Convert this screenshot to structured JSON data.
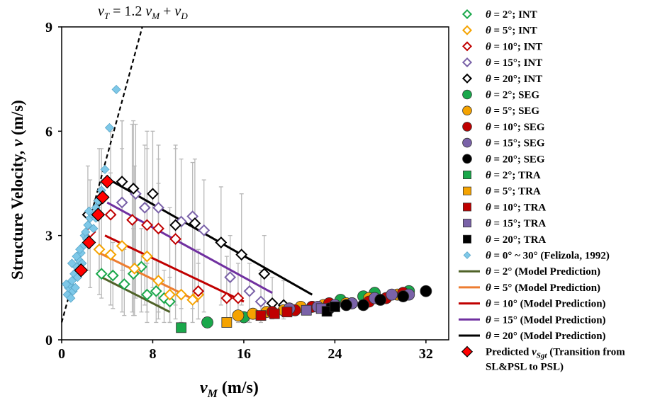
{
  "chart_data": {
    "type": "scatter",
    "xlabel_main": "v",
    "xlabel_sub": "M",
    "xlabel_unit": " (m/s)",
    "ylabel_main": "Structure Velocity, ",
    "ylabel_var": "v",
    "ylabel_unit": " (m/s)",
    "annotation": {
      "a": "v",
      "a_sub": "T",
      "b": " = 1.2 ",
      "c": "v",
      "c_sub": "M",
      "d": " + ",
      "e": "v",
      "e_sub": "D"
    },
    "xlim": [
      0,
      34
    ],
    "ylim": [
      0,
      9
    ],
    "xticks": [
      "0",
      "8",
      "16",
      "24",
      "32"
    ],
    "xtick_values": [
      0,
      8,
      16,
      24,
      32
    ],
    "yticks": [
      "0",
      "3",
      "6",
      "9"
    ],
    "ytick_values": [
      0,
      3,
      6,
      9
    ],
    "drift_line": {
      "slope": 1.2,
      "intercept": 0.5
    },
    "colors": {
      "green": "#1aa84b",
      "orange": "#f5a300",
      "red": "#c00000",
      "purple": "#7a62a8",
      "black": "#000000",
      "lightblue": "#7ec8e8",
      "line_green": "#4f6228",
      "line_orange": "#ed7d31",
      "line_red": "#c00000",
      "line_purple": "#7030a0",
      "line_black": "#000000",
      "predicted": "#ff0000"
    },
    "legend": [
      {
        "th": "θ",
        "rest": " = 2°; INT"
      },
      {
        "th": "θ",
        "rest": " = 5°; INT"
      },
      {
        "th": "θ",
        "rest": " = 10°; INT"
      },
      {
        "th": "θ",
        "rest": " = 15°; INT"
      },
      {
        "th": "θ",
        "rest": " = 20°; INT"
      },
      {
        "th": "θ",
        "rest": " = 2°; SEG"
      },
      {
        "th": "θ",
        "rest": " = 5°; SEG"
      },
      {
        "th": "θ",
        "rest": " = 10°; SEG"
      },
      {
        "th": "θ",
        "rest": " = 15°; SEG"
      },
      {
        "th": "θ",
        "rest": " = 20°; SEG"
      },
      {
        "th": "θ",
        "rest": " = 2°; TRA"
      },
      {
        "th": "θ",
        "rest": " = 5°; TRA"
      },
      {
        "th": "θ",
        "rest": " = 10°; TRA"
      },
      {
        "th": "θ",
        "rest": " = 15°; TRA"
      },
      {
        "th": "θ",
        "rest": " = 20°; TRA"
      },
      {
        "th": "θ",
        "rest": " = 0° ~ 30°  (Felizola, 1992)"
      },
      {
        "th": "θ",
        "rest": " = 2° (Model Prediction)"
      },
      {
        "th": "θ",
        "rest": " = 5° (Model Prediction)"
      },
      {
        "th": "θ",
        "rest": " = 10° (Model Prediction)"
      },
      {
        "th": "θ",
        "rest": " = 15° (Model Prediction)"
      },
      {
        "th": "θ",
        "rest": " = 20° (Model Prediction)"
      },
      {
        "th": "",
        "rest": "Predicted ",
        "var": "v",
        "var_sub": "Sgt",
        "after": " (Transition from",
        "line2": "SL&PSL to PSL)"
      }
    ],
    "legend_markers": [
      "int-green",
      "int-orange",
      "int-red",
      "int-purple",
      "int-black",
      "seg-green",
      "seg-orange",
      "seg-red",
      "seg-purple",
      "seg-black",
      "tra-green",
      "tra-orange",
      "tra-red",
      "tra-purple",
      "tra-black",
      "felizola",
      "line-green",
      "line-orange",
      "line-red",
      "line-purple",
      "line-black",
      "predicted"
    ],
    "series": [
      {
        "kind": "int",
        "color": "green",
        "points": [
          [
            3.5,
            1.9
          ],
          [
            4.5,
            1.85
          ],
          [
            5.5,
            1.6
          ],
          [
            6.3,
            1.9
          ],
          [
            7,
            2.1
          ],
          [
            7.5,
            1.3
          ],
          [
            8.3,
            1.4
          ],
          [
            9,
            1.2
          ],
          [
            9.5,
            1.1
          ]
        ],
        "errors": [
          [
            3.5,
            1.2,
            2.6
          ],
          [
            4.5,
            0.9,
            2.8
          ],
          [
            5.5,
            0.7,
            2.6
          ],
          [
            6.3,
            0.7,
            3.2
          ],
          [
            7,
            0.8,
            3.2
          ],
          [
            7.5,
            0.5,
            2.2
          ],
          [
            8.3,
            0.5,
            2.3
          ],
          [
            9,
            0.5,
            2.0
          ],
          [
            9.5,
            0.5,
            1.8
          ]
        ]
      },
      {
        "kind": "int",
        "color": "orange",
        "points": [
          [
            3.3,
            2.6
          ],
          [
            4.3,
            2.45
          ],
          [
            5.3,
            2.7
          ],
          [
            6.4,
            2.05
          ],
          [
            7.5,
            2.4
          ],
          [
            8.5,
            1.7
          ],
          [
            9.5,
            1.3
          ],
          [
            10.5,
            1.3
          ],
          [
            11.5,
            1.15
          ],
          [
            12,
            1.3
          ]
        ],
        "errors": [
          [
            3.3,
            1.3,
            4.0
          ],
          [
            4.3,
            1.0,
            4.8
          ],
          [
            5.3,
            0.8,
            5.5
          ],
          [
            6.4,
            0.7,
            5.0
          ],
          [
            7.5,
            0.8,
            5.5
          ],
          [
            8.5,
            0.6,
            4.5
          ],
          [
            9.5,
            0.5,
            3.8
          ],
          [
            10.5,
            0.5,
            3.5
          ],
          [
            11.5,
            0.5,
            2.6
          ],
          [
            12,
            0.6,
            2.2
          ]
        ]
      },
      {
        "kind": "int",
        "color": "red",
        "points": [
          [
            2.5,
            3.1
          ],
          [
            4.3,
            3.6
          ],
          [
            6.2,
            3.45
          ],
          [
            7.5,
            3.3
          ],
          [
            8.5,
            3.2
          ],
          [
            10,
            2.9
          ],
          [
            12,
            1.4
          ],
          [
            14.5,
            1.2
          ],
          [
            15.5,
            1.2
          ]
        ],
        "errors": [
          [
            2.5,
            1.5,
            4.6
          ],
          [
            4.3,
            1.0,
            6.0
          ],
          [
            6.2,
            0.8,
            6.2
          ],
          [
            7.5,
            0.8,
            6.0
          ],
          [
            8.5,
            0.8,
            5.2
          ],
          [
            10,
            0.6,
            5.5
          ],
          [
            12,
            0.6,
            2.6
          ],
          [
            14.5,
            0.5,
            2.4
          ],
          [
            15.5,
            0.5,
            2.2
          ]
        ]
      },
      {
        "kind": "int",
        "color": "purple",
        "points": [
          [
            3.5,
            4.1
          ],
          [
            5.3,
            3.95
          ],
          [
            6.5,
            4.2
          ],
          [
            7.3,
            3.8
          ],
          [
            8.5,
            3.8
          ],
          [
            10.5,
            3.4
          ],
          [
            11.5,
            3.55
          ],
          [
            12.5,
            3.15
          ],
          [
            14.8,
            1.8
          ],
          [
            16.5,
            1.4
          ],
          [
            17.5,
            1.1
          ]
        ],
        "errors": [
          [
            3.5,
            2.0,
            5.5
          ],
          [
            5.3,
            1.5,
            6.3
          ],
          [
            6.5,
            1.2,
            6.2
          ],
          [
            7.3,
            1.0,
            5.6
          ],
          [
            8.5,
            1.0,
            5.6
          ],
          [
            10.5,
            0.9,
            5.2
          ],
          [
            11.5,
            0.9,
            5.1
          ],
          [
            12.5,
            0.8,
            4.6
          ],
          [
            14.8,
            0.6,
            3.0
          ],
          [
            16.5,
            0.5,
            2.2
          ],
          [
            17.5,
            0.5,
            2.0
          ]
        ]
      },
      {
        "kind": "int",
        "color": "black",
        "points": [
          [
            2.3,
            3.6
          ],
          [
            3.3,
            4.0
          ],
          [
            5.3,
            4.55
          ],
          [
            6.3,
            4.35
          ],
          [
            8,
            4.2
          ],
          [
            10,
            3.3
          ],
          [
            11.7,
            3.35
          ],
          [
            14,
            2.8
          ],
          [
            15.8,
            2.45
          ],
          [
            17.8,
            1.9
          ],
          [
            18.5,
            1.05
          ],
          [
            19.5,
            1.0
          ]
        ],
        "errors": [
          [
            2.3,
            2.0,
            5.0
          ],
          [
            3.3,
            2.0,
            5.5
          ],
          [
            5.3,
            2.0,
            6.3
          ],
          [
            6.3,
            1.8,
            6.3
          ],
          [
            8,
            1.5,
            6.0
          ],
          [
            10,
            1.0,
            5.6
          ],
          [
            11.7,
            1.2,
            5.2
          ],
          [
            14,
            1.0,
            4.4
          ],
          [
            15.8,
            1.0,
            4.2
          ],
          [
            17.8,
            0.8,
            3.0
          ],
          [
            18.5,
            0.6,
            1.8
          ],
          [
            19.5,
            0.6,
            1.7
          ]
        ]
      },
      {
        "kind": "seg",
        "color": "green",
        "points": [
          [
            12.8,
            0.5
          ],
          [
            16,
            0.65
          ],
          [
            20,
            0.9
          ],
          [
            22,
            0.95
          ],
          [
            24.5,
            1.15
          ],
          [
            26.5,
            1.25
          ],
          [
            27.5,
            1.35
          ],
          [
            30.5,
            1.4
          ]
        ]
      },
      {
        "kind": "seg",
        "color": "orange",
        "points": [
          [
            15.5,
            0.7
          ],
          [
            16.8,
            0.75
          ],
          [
            18,
            0.8
          ],
          [
            19.5,
            0.85
          ],
          [
            21,
            0.95
          ],
          [
            23,
            1.0
          ],
          [
            25,
            1.05
          ],
          [
            27,
            1.2
          ],
          [
            29.5,
            1.3
          ]
        ]
      },
      {
        "kind": "seg",
        "color": "red",
        "points": [
          [
            18.5,
            0.8
          ],
          [
            20.5,
            0.85
          ],
          [
            22,
            0.95
          ],
          [
            23.5,
            1.05
          ],
          [
            25.5,
            1.05
          ],
          [
            27,
            1.1
          ],
          [
            28.5,
            1.2
          ],
          [
            30,
            1.35
          ]
        ]
      },
      {
        "kind": "seg",
        "color": "purple",
        "points": [
          [
            20,
            0.9
          ],
          [
            22.5,
            0.95
          ],
          [
            24,
            1.0
          ],
          [
            25.5,
            1.05
          ],
          [
            27.5,
            1.2
          ],
          [
            29,
            1.3
          ],
          [
            30.5,
            1.3
          ]
        ]
      },
      {
        "kind": "seg",
        "color": "black",
        "points": [
          [
            23.5,
            0.9
          ],
          [
            25,
            1.0
          ],
          [
            26.5,
            1.0
          ],
          [
            28,
            1.15
          ],
          [
            30,
            1.25
          ],
          [
            32,
            1.4
          ]
        ]
      },
      {
        "kind": "tra",
        "color": "green",
        "points": [
          [
            10.5,
            0.35
          ]
        ]
      },
      {
        "kind": "tra",
        "color": "orange",
        "points": [
          [
            14.5,
            0.5
          ]
        ]
      },
      {
        "kind": "tra",
        "color": "red",
        "points": [
          [
            17.5,
            0.7
          ],
          [
            18.7,
            0.75
          ],
          [
            19.8,
            0.8
          ]
        ]
      },
      {
        "kind": "tra",
        "color": "purple",
        "points": [
          [
            21.5,
            0.85
          ],
          [
            22.8,
            0.9
          ]
        ]
      },
      {
        "kind": "tra",
        "color": "black",
        "points": [
          [
            23.3,
            0.82
          ],
          [
            24,
            0.95
          ]
        ]
      },
      {
        "kind": "felizola",
        "color": "lightblue",
        "points": [
          [
            0.5,
            1.3
          ],
          [
            0.6,
            1.5
          ],
          [
            0.7,
            1.6
          ],
          [
            0.8,
            1.2
          ],
          [
            0.9,
            1.7
          ],
          [
            1.0,
            1.4
          ],
          [
            1.1,
            1.9
          ],
          [
            1.2,
            1.5
          ],
          [
            1.3,
            2.1
          ],
          [
            1.4,
            1.8
          ],
          [
            1.5,
            2.3
          ],
          [
            1.6,
            2.0
          ],
          [
            1.7,
            2.5
          ],
          [
            1.8,
            2.2
          ],
          [
            1.9,
            2.7
          ],
          [
            2.0,
            3.0
          ],
          [
            2.1,
            3.1
          ],
          [
            2.2,
            2.9
          ],
          [
            2.3,
            3.3
          ],
          [
            2.5,
            3.5
          ],
          [
            2.7,
            3.6
          ],
          [
            2.8,
            3.2
          ],
          [
            3.0,
            3.8
          ],
          [
            3.2,
            4.0
          ],
          [
            3.5,
            4.3
          ],
          [
            3.8,
            4.9
          ],
          [
            4.2,
            6.1
          ],
          [
            4.8,
            7.2
          ],
          [
            0.4,
            1.6
          ],
          [
            0.9,
            2.2
          ],
          [
            1.3,
            2.4
          ],
          [
            1.6,
            2.6
          ],
          [
            2.4,
            3.7
          ],
          [
            3.0,
            3.5
          ]
        ]
      }
    ],
    "model_lines": [
      {
        "color": "line_green",
        "from": [
          3.5,
          1.8
        ],
        "to": [
          9.5,
          0.8
        ]
      },
      {
        "color": "line_orange",
        "from": [
          3.3,
          2.5
        ],
        "to": [
          12,
          1.1
        ]
      },
      {
        "color": "line_red",
        "from": [
          3.8,
          3.0
        ],
        "to": [
          16,
          1.1
        ]
      },
      {
        "color": "line_purple",
        "from": [
          4,
          3.95
        ],
        "to": [
          18.5,
          1.35
        ]
      },
      {
        "color": "line_black",
        "from": [
          4.5,
          4.55
        ],
        "to": [
          22,
          1.3
        ]
      }
    ],
    "predicted": [
      [
        1.7,
        2.0
      ],
      [
        2.4,
        2.8
      ],
      [
        3.2,
        3.6
      ],
      [
        3.6,
        4.1
      ],
      [
        4.0,
        4.55
      ]
    ]
  }
}
